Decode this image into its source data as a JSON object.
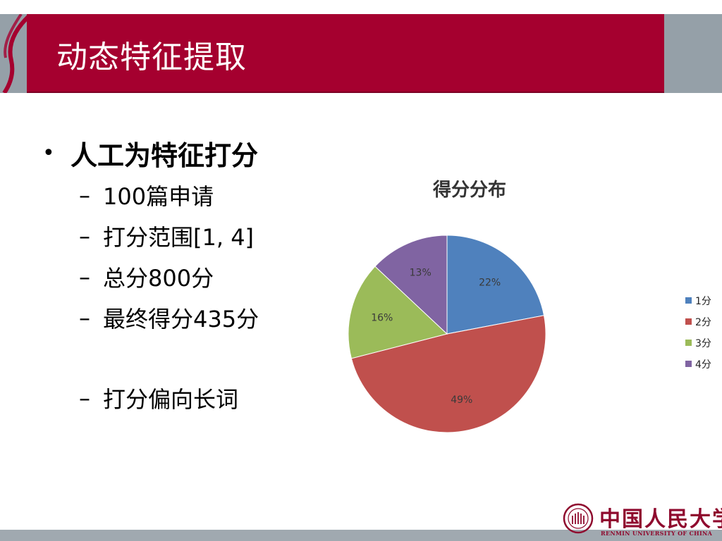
{
  "slide": {
    "title": "动态特征提取",
    "main_bullet": "人工为特征打分",
    "bullet_symbol": "•",
    "dash_symbol": "–",
    "sub_items": [
      {
        "text": "100篇申请"
      },
      {
        "text": "打分范围[1, 4]"
      },
      {
        "text": "总分800分"
      },
      {
        "text": "最终得分435分"
      },
      {
        "text": "打分偏向长词"
      }
    ]
  },
  "colors": {
    "header_red": "#a5002f",
    "header_gray": "#95a0a8",
    "logo_red": "#8f0a2e"
  },
  "chart_data": {
    "type": "pie",
    "title": "得分分布",
    "categories": [
      "1分",
      "2分",
      "3分",
      "4分"
    ],
    "values": [
      22,
      49,
      16,
      13
    ],
    "labels": [
      "22%",
      "49%",
      "16%",
      "13%"
    ],
    "colors": [
      "#4f81bd",
      "#c0504d",
      "#9bbb59",
      "#8064a2"
    ],
    "legend_position": "right",
    "start_angle": "12 o'clock, clockwise"
  },
  "logo": {
    "name": "中国人民大学",
    "english": "RENMIN UNIVERSITY OF CHINA"
  }
}
